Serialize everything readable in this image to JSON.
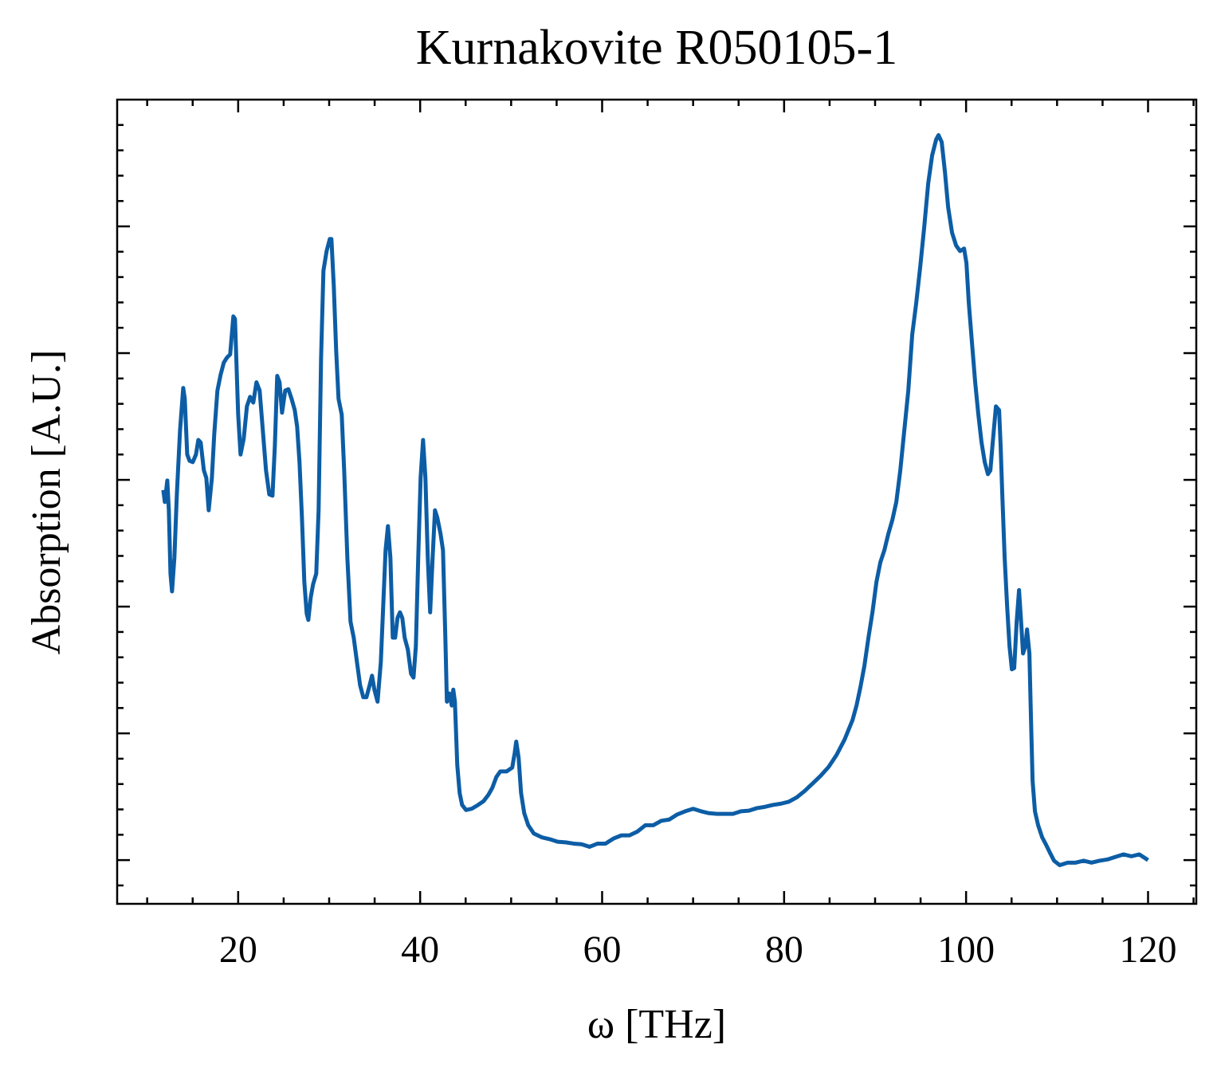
{
  "chart_data": {
    "type": "line",
    "title": "Kurnakovite R050105-1",
    "xlabel": "ω [THz]",
    "ylabel": "Absorption [A.U.]",
    "color": "#0c5da5",
    "xlim": [
      6.7,
      125.3
    ],
    "ylim": [
      -0.069,
      1.2
    ],
    "xticks": [
      20,
      40,
      60,
      80,
      100,
      120
    ],
    "xminorticks": [
      10,
      15,
      25,
      30,
      35,
      45,
      50,
      55,
      65,
      70,
      75,
      85,
      90,
      95,
      105,
      110,
      115,
      125
    ],
    "yticks": [
      0,
      0.2,
      0.4,
      0.6,
      0.8,
      1.0
    ],
    "yminorticks": [
      -0.04,
      0.04,
      0.08,
      0.12,
      0.16,
      0.24,
      0.28,
      0.32,
      0.36,
      0.44,
      0.48,
      0.52,
      0.56,
      0.64,
      0.68,
      0.72,
      0.76,
      0.84,
      0.88,
      0.92,
      0.96,
      1.04,
      1.08,
      1.12,
      1.16
    ],
    "x": [
      11.77,
      11.94,
      12.21,
      12.38,
      12.56,
      12.73,
      12.99,
      13.26,
      13.61,
      13.96,
      14.13,
      14.4,
      14.66,
      15.01,
      15.36,
      15.62,
      15.88,
      16.23,
      16.5,
      16.76,
      17.11,
      17.37,
      17.72,
      18.07,
      18.42,
      18.77,
      19.12,
      19.47,
      19.65,
      20.0,
      20.26,
      20.61,
      20.96,
      21.31,
      21.66,
      22.01,
      22.36,
      22.71,
      23.06,
      23.42,
      23.77,
      24.03,
      24.29,
      24.55,
      24.82,
      25.17,
      25.52,
      25.87,
      26.22,
      26.48,
      26.74,
      27.01,
      27.27,
      27.53,
      27.71,
      27.97,
      28.23,
      28.58,
      28.84,
      29.11,
      29.37,
      29.72,
      30.07,
      30.25,
      30.51,
      30.77,
      31.03,
      31.38,
      31.65,
      32.0,
      32.35,
      32.7,
      33.05,
      33.4,
      33.75,
      34.1,
      34.45,
      34.71,
      34.97,
      35.32,
      35.68,
      35.94,
      36.2,
      36.46,
      36.73,
      36.99,
      37.25,
      37.51,
      37.78,
      38.04,
      38.3,
      38.65,
      39.0,
      39.27,
      39.53,
      39.79,
      40.05,
      40.32,
      40.58,
      40.84,
      41.1,
      41.37,
      41.63,
      41.89,
      42.24,
      42.51,
      42.77,
      42.94,
      43.21,
      43.47,
      43.64,
      43.82,
      44.08,
      44.34,
      44.61,
      45.05,
      45.66,
      46.36,
      46.97,
      47.5,
      47.93,
      48.37,
      48.81,
      49.51,
      50.12,
      50.39,
      50.56,
      50.82,
      51.09,
      51.44,
      51.88,
      52.49,
      53.36,
      54.24,
      55.12,
      55.99,
      56.87,
      57.74,
      58.62,
      59.5,
      60.37,
      61.25,
      62.12,
      63.0,
      63.87,
      64.75,
      65.62,
      66.5,
      67.38,
      68.25,
      69.13,
      70.0,
      70.88,
      71.75,
      72.63,
      73.51,
      74.38,
      75.26,
      76.13,
      77.01,
      77.88,
      78.76,
      79.64,
      80.51,
      81.39,
      82.26,
      83.14,
      84.01,
      84.89,
      85.77,
      86.64,
      87.52,
      87.96,
      88.39,
      88.83,
      89.27,
      89.71,
      90.15,
      90.58,
      91.02,
      91.46,
      91.9,
      92.33,
      92.77,
      93.21,
      93.65,
      94.08,
      94.52,
      94.96,
      95.4,
      95.84,
      96.27,
      96.71,
      96.97,
      97.32,
      97.67,
      98.03,
      98.46,
      98.9,
      99.34,
      99.78,
      100.04,
      100.3,
      100.65,
      101.0,
      101.35,
      101.7,
      102.05,
      102.4,
      102.67,
      102.93,
      103.28,
      103.63,
      103.8,
      103.98,
      104.24,
      104.51,
      104.77,
      105.03,
      105.29,
      105.56,
      105.82,
      105.99,
      106.26,
      106.52,
      106.7,
      106.96,
      107.13,
      107.31,
      107.57,
      107.92,
      108.36,
      108.8,
      109.24,
      109.67,
      110.29,
      111.16,
      112.04,
      112.91,
      113.79,
      114.66,
      115.54,
      116.42,
      117.29,
      118.17,
      119.04,
      120.0
    ],
    "values": [
      0.584,
      0.565,
      0.599,
      0.552,
      0.452,
      0.424,
      0.477,
      0.577,
      0.678,
      0.745,
      0.728,
      0.64,
      0.63,
      0.628,
      0.64,
      0.663,
      0.659,
      0.615,
      0.603,
      0.552,
      0.603,
      0.672,
      0.741,
      0.766,
      0.785,
      0.793,
      0.798,
      0.858,
      0.854,
      0.703,
      0.64,
      0.665,
      0.716,
      0.731,
      0.722,
      0.754,
      0.741,
      0.678,
      0.615,
      0.577,
      0.575,
      0.653,
      0.764,
      0.754,
      0.706,
      0.741,
      0.743,
      0.728,
      0.71,
      0.684,
      0.628,
      0.54,
      0.439,
      0.389,
      0.379,
      0.414,
      0.435,
      0.452,
      0.552,
      0.791,
      0.93,
      0.961,
      0.98,
      0.98,
      0.905,
      0.804,
      0.728,
      0.703,
      0.615,
      0.477,
      0.376,
      0.351,
      0.313,
      0.276,
      0.257,
      0.257,
      0.276,
      0.291,
      0.269,
      0.25,
      0.313,
      0.401,
      0.489,
      0.527,
      0.477,
      0.351,
      0.351,
      0.382,
      0.391,
      0.382,
      0.351,
      0.332,
      0.294,
      0.288,
      0.338,
      0.477,
      0.603,
      0.663,
      0.603,
      0.477,
      0.391,
      0.477,
      0.552,
      0.54,
      0.515,
      0.489,
      0.351,
      0.25,
      0.263,
      0.244,
      0.269,
      0.25,
      0.15,
      0.106,
      0.087,
      0.079,
      0.081,
      0.087,
      0.093,
      0.103,
      0.114,
      0.131,
      0.14,
      0.14,
      0.146,
      0.169,
      0.187,
      0.162,
      0.106,
      0.074,
      0.055,
      0.042,
      0.036,
      0.033,
      0.029,
      0.028,
      0.026,
      0.025,
      0.021,
      0.026,
      0.026,
      0.034,
      0.039,
      0.039,
      0.045,
      0.055,
      0.055,
      0.062,
      0.064,
      0.072,
      0.077,
      0.081,
      0.077,
      0.074,
      0.073,
      0.073,
      0.073,
      0.077,
      0.078,
      0.082,
      0.084,
      0.087,
      0.089,
      0.092,
      0.099,
      0.109,
      0.121,
      0.133,
      0.147,
      0.166,
      0.19,
      0.221,
      0.244,
      0.273,
      0.307,
      0.351,
      0.391,
      0.439,
      0.47,
      0.489,
      0.515,
      0.537,
      0.565,
      0.615,
      0.678,
      0.741,
      0.829,
      0.879,
      0.936,
      0.999,
      1.068,
      1.112,
      1.137,
      1.144,
      1.133,
      1.087,
      1.03,
      0.99,
      0.97,
      0.961,
      0.965,
      0.942,
      0.879,
      0.816,
      0.754,
      0.703,
      0.659,
      0.628,
      0.609,
      0.615,
      0.659,
      0.716,
      0.71,
      0.653,
      0.577,
      0.477,
      0.401,
      0.338,
      0.301,
      0.303,
      0.376,
      0.426,
      0.389,
      0.326,
      0.338,
      0.364,
      0.326,
      0.225,
      0.125,
      0.077,
      0.055,
      0.036,
      0.024,
      0.011,
      -0.001,
      -0.008,
      -0.004,
      -0.004,
      -0.001,
      -0.004,
      -0.001,
      0.001,
      0.005,
      0.009,
      0.006,
      0.009,
      0.0
    ]
  }
}
